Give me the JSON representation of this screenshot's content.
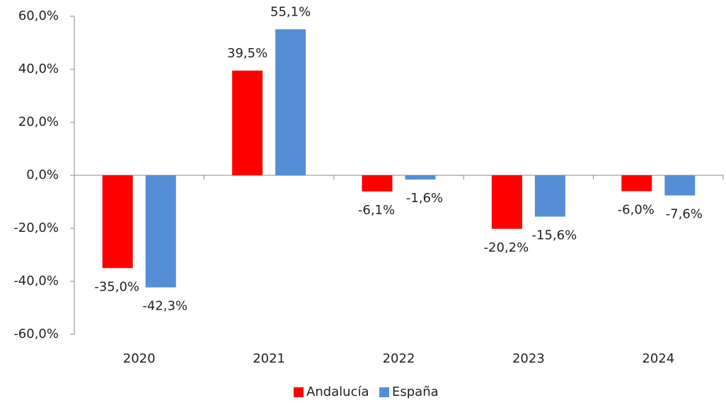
{
  "chart_data": {
    "type": "bar",
    "categories": [
      "2020",
      "2021",
      "2022",
      "2023",
      "2024"
    ],
    "series": [
      {
        "name": "Andalucía",
        "color": "#ff0000",
        "values": [
          -35.0,
          39.5,
          -6.1,
          -20.2,
          -6.0
        ],
        "value_labels": [
          "-35,0%",
          "39,5%",
          "-6,1%",
          "-20,2%",
          "-6,0%"
        ]
      },
      {
        "name": "España",
        "color": "#558ed5",
        "values": [
          -42.3,
          55.1,
          -1.6,
          -15.6,
          -7.6
        ],
        "value_labels": [
          "-42,3%",
          "55,1%",
          "-1,6%",
          "-15,6%",
          "-7,6%"
        ]
      }
    ],
    "ylim": [
      -60,
      60
    ],
    "yticks": [
      {
        "value": -60,
        "label": "-60,0%"
      },
      {
        "value": -40,
        "label": "-40,0%"
      },
      {
        "value": -20,
        "label": "-20,0%"
      },
      {
        "value": 0,
        "label": "0,0%"
      },
      {
        "value": 20,
        "label": "20,0%"
      },
      {
        "value": 40,
        "label": "40,0%"
      },
      {
        "value": 60,
        "label": "60,0%"
      }
    ],
    "legend": "bottom"
  }
}
